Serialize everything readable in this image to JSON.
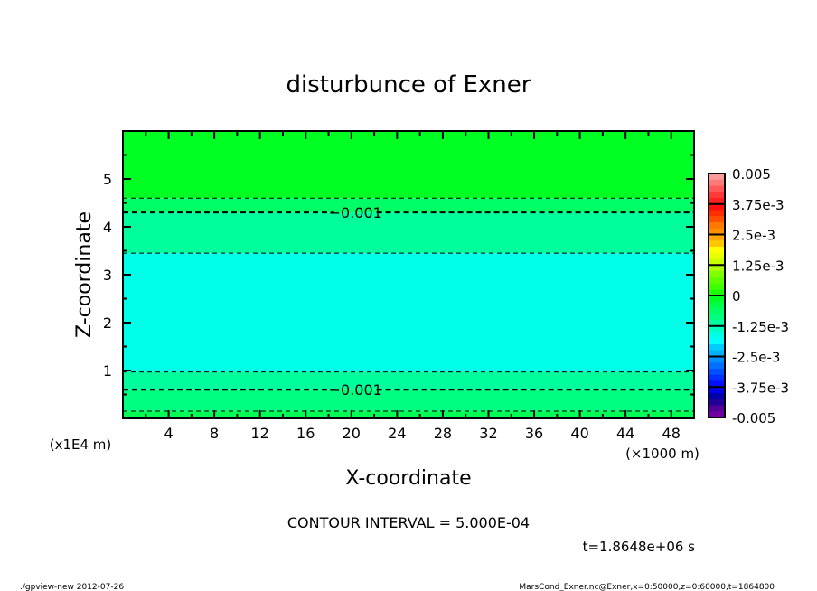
{
  "chart_data": {
    "type": "contour",
    "title": "disturbunce of Exner",
    "xlabel": "X-coordinate",
    "ylabel": "Z-coordinate",
    "x_unit": "(×1000 m)",
    "y_unit": "(x1E4 m)",
    "xlim": [
      0,
      50
    ],
    "ylim": [
      0,
      6
    ],
    "x_ticks": [
      4,
      8,
      12,
      16,
      20,
      24,
      28,
      32,
      36,
      40,
      44,
      48
    ],
    "y_ticks": [
      1,
      2,
      3,
      4,
      5
    ],
    "contour_interval_text": "CONTOUR INTERVAL = 5.000E-04",
    "time_text": "t=1.8648e+06 s",
    "contours": [
      {
        "level": -0.0005,
        "z": 4.6,
        "z_lower": 0.15,
        "labeled": false
      },
      {
        "level": -0.001,
        "z": 4.3,
        "z_lower": 0.6,
        "labeled": true,
        "label": "-0.001"
      },
      {
        "level": -0.0015,
        "z": 3.45,
        "z_lower": 0.97,
        "labeled": false
      }
    ],
    "fill_bands": [
      {
        "from_z": 4.6,
        "to_z": 6,
        "color": "#00ff22"
      },
      {
        "from_z": 4.3,
        "to_z": 4.6,
        "color": "#00ff66"
      },
      {
        "from_z": 3.45,
        "to_z": 4.3,
        "color": "#00ff9c"
      },
      {
        "from_z": 0.97,
        "to_z": 3.45,
        "color": "#00ffe8"
      },
      {
        "from_z": 0.6,
        "to_z": 0.97,
        "color": "#00ff9c"
      },
      {
        "from_z": 0.15,
        "to_z": 0.6,
        "color": "#00ff80"
      },
      {
        "from_z": 0,
        "to_z": 0.15,
        "color": "#00ff55"
      }
    ],
    "colorbar": {
      "range": [
        -0.005,
        0.005
      ],
      "tick_labels": [
        "0.005",
        "3.75e-3",
        "2.5e-3",
        "1.25e-3",
        "0",
        "-1.25e-3",
        "-2.5e-3",
        "-3.75e-3",
        "-0.005"
      ],
      "colors": [
        "#ff9a9a",
        "#ff7a7a",
        "#ff5a5a",
        "#ff3a3a",
        "#ff2020",
        "#ff1010",
        "#ff3000",
        "#ff5000",
        "#ff7800",
        "#ff9000",
        "#ffaa00",
        "#ffc800",
        "#ffff00",
        "#e8ff00",
        "#c8ff00",
        "#a8ff00",
        "#80ff00",
        "#60ff00",
        "#40ff00",
        "#20ff00",
        "#00ff22",
        "#00ff44",
        "#00ff66",
        "#00ff80",
        "#00ffa0",
        "#00ffc0",
        "#00ffe8",
        "#00ffff",
        "#00ccff",
        "#00b0ff",
        "#0090ff",
        "#0070ff",
        "#0050ff",
        "#0030ff",
        "#0010ff",
        "#0000ee",
        "#0000aa",
        "#200099",
        "#500099",
        "#7000a0"
      ]
    }
  },
  "footer": {
    "left": "./gpview-new   2012-07-26",
    "right": "MarsCond_Exner.nc@Exner,x=0:50000,z=0:60000,t=1864800"
  }
}
